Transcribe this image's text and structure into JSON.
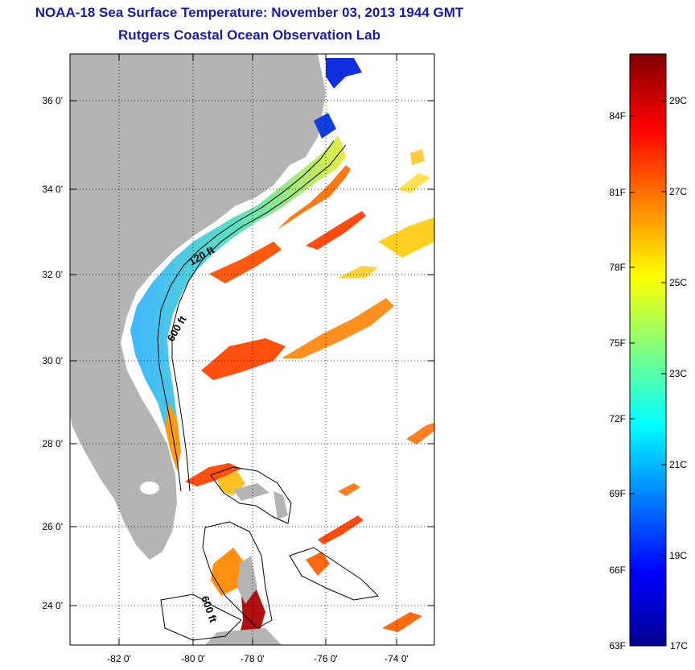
{
  "header": {
    "title": "NOAA-18 Sea Surface Temperature:  November 03, 2013 1944 GMT",
    "subtitle": "Rutgers Coastal Ocean Observation Lab"
  },
  "map": {
    "lon_ticks": [
      "-82 0'",
      "-80 0'",
      "-78 0'",
      "-76 0'",
      "-74 0'"
    ],
    "lat_ticks": [
      "36 0'",
      "34 0'",
      "32 0'",
      "30 0'",
      "28 0'",
      "26 0'",
      "24 0'"
    ],
    "lon_range": [
      -83,
      -73
    ],
    "lat_range": [
      23,
      37
    ],
    "contour_labels": [
      "120 ft",
      "600 ft",
      "600 ft"
    ],
    "colors": {
      "land": "#b4b4b4",
      "ocean_nodata": "#ffffff",
      "frame": "#000000"
    }
  },
  "colorbar": {
    "fahrenheit_labels": [
      "84F",
      "81F",
      "78F",
      "75F",
      "72F",
      "69F",
      "66F",
      "63F"
    ],
    "celsius_labels": [
      "29C",
      "27C",
      "25C",
      "23C",
      "21C",
      "19C",
      "17C"
    ],
    "range_c": [
      17,
      30
    ],
    "colormap": "jet"
  }
}
